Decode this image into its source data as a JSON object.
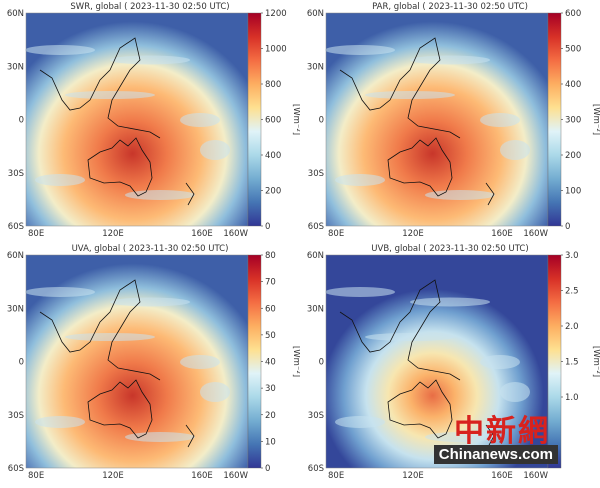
{
  "colormap": [
    "#313695",
    "#4575b4",
    "#74add1",
    "#abd9e9",
    "#e0f3f8",
    "#fee090",
    "#fdae61",
    "#f46d43",
    "#d73027",
    "#a50026"
  ],
  "lat_labels": [
    "60N",
    "30N",
    "0",
    "30S",
    "60S"
  ],
  "lon_labels": [
    "80E",
    "120E",
    "160E",
    "160W"
  ],
  "unit_label": "[Wm⁻²]",
  "panels": [
    {
      "title": "SWR, global ( 2023-11-30 02:50 UTC)",
      "vmin": 0,
      "vmax": 1200,
      "ticks": [
        "0",
        "200",
        "400",
        "600",
        "800",
        "1000",
        "1200"
      ],
      "tick_values": [
        0,
        200,
        400,
        600,
        800,
        1000,
        1200
      ],
      "intensity": "high"
    },
    {
      "title": "PAR, global ( 2023-11-30 02:50 UTC)",
      "vmin": 0,
      "vmax": 600,
      "ticks": [
        "0",
        "100",
        "200",
        "300",
        "400",
        "500",
        "600"
      ],
      "tick_values": [
        0,
        100,
        200,
        300,
        400,
        500,
        600
      ],
      "intensity": "high"
    },
    {
      "title": "UVA, global ( 2023-11-30 02:50 UTC)",
      "vmin": 0,
      "vmax": 80,
      "ticks": [
        "0",
        "10",
        "20",
        "30",
        "40",
        "50",
        "60",
        "70",
        "80"
      ],
      "tick_values": [
        0,
        10,
        20,
        30,
        40,
        50,
        60,
        70,
        80
      ],
      "intensity": "high"
    },
    {
      "title": "UVB, global ( 2023-11-30 02:50 UTC)",
      "vmin": 0,
      "vmax": 3.0,
      "ticks": [
        "1.0",
        "1.5",
        "2.0",
        "2.5",
        "3.0"
      ],
      "tick_values": [
        1.0,
        1.5,
        2.0,
        2.5,
        3.0
      ],
      "intensity": "low"
    }
  ],
  "watermark": {
    "cn": "中新網",
    "en": "Chinanews.com"
  }
}
